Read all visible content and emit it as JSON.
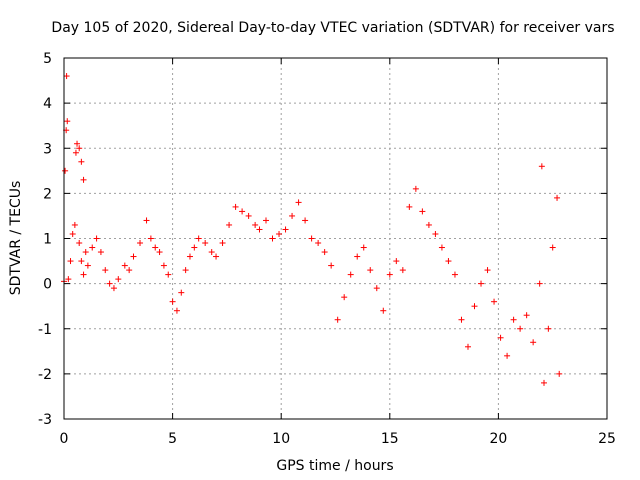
{
  "chart_data": {
    "type": "scatter",
    "title": "Day 105 of 2020, Sidereal Day-to-day VTEC variation (SDTVAR) for receiver vars",
    "xlabel": "GPS time / hours",
    "ylabel": "SDTVAR / TECUs",
    "xlim": [
      0,
      25
    ],
    "ylim": [
      -3,
      5
    ],
    "xticks": [
      0,
      5,
      10,
      15,
      20,
      25
    ],
    "yticks": [
      -3,
      -2,
      -1,
      0,
      1,
      2,
      3,
      4,
      5
    ],
    "grid": true,
    "marker": "plus",
    "marker_color": "#ff0000",
    "series": [
      {
        "name": "SDTVAR",
        "points": [
          [
            0.0,
            0.05
          ],
          [
            0.05,
            2.5
          ],
          [
            0.1,
            3.4
          ],
          [
            0.12,
            4.6
          ],
          [
            0.15,
            3.6
          ],
          [
            0.2,
            0.1
          ],
          [
            0.3,
            0.5
          ],
          [
            0.4,
            1.1
          ],
          [
            0.5,
            1.3
          ],
          [
            0.55,
            2.9
          ],
          [
            0.6,
            3.1
          ],
          [
            0.7,
            3.0
          ],
          [
            0.8,
            2.7
          ],
          [
            0.9,
            2.3
          ],
          [
            0.7,
            0.9
          ],
          [
            0.8,
            0.5
          ],
          [
            0.9,
            0.2
          ],
          [
            1.0,
            0.7
          ],
          [
            1.1,
            0.4
          ],
          [
            1.3,
            0.8
          ],
          [
            1.5,
            1.0
          ],
          [
            1.7,
            0.7
          ],
          [
            1.9,
            0.3
          ],
          [
            2.1,
            0.0
          ],
          [
            2.3,
            -0.1
          ],
          [
            2.5,
            0.1
          ],
          [
            2.8,
            0.4
          ],
          [
            3.0,
            0.3
          ],
          [
            3.2,
            0.6
          ],
          [
            3.5,
            0.9
          ],
          [
            3.8,
            1.4
          ],
          [
            4.0,
            1.0
          ],
          [
            4.2,
            0.8
          ],
          [
            4.4,
            0.7
          ],
          [
            4.6,
            0.4
          ],
          [
            4.8,
            0.2
          ],
          [
            5.0,
            -0.4
          ],
          [
            5.2,
            -0.6
          ],
          [
            5.4,
            -0.2
          ],
          [
            5.6,
            0.3
          ],
          [
            5.8,
            0.6
          ],
          [
            6.0,
            0.8
          ],
          [
            6.2,
            1.0
          ],
          [
            6.5,
            0.9
          ],
          [
            6.8,
            0.7
          ],
          [
            7.0,
            0.6
          ],
          [
            7.3,
            0.9
          ],
          [
            7.6,
            1.3
          ],
          [
            7.9,
            1.7
          ],
          [
            8.2,
            1.6
          ],
          [
            8.5,
            1.5
          ],
          [
            8.8,
            1.3
          ],
          [
            9.0,
            1.2
          ],
          [
            9.3,
            1.4
          ],
          [
            9.6,
            1.0
          ],
          [
            9.9,
            1.1
          ],
          [
            10.2,
            1.2
          ],
          [
            10.5,
            1.5
          ],
          [
            10.8,
            1.8
          ],
          [
            11.1,
            1.4
          ],
          [
            11.4,
            1.0
          ],
          [
            11.7,
            0.9
          ],
          [
            12.0,
            0.7
          ],
          [
            12.3,
            0.4
          ],
          [
            12.6,
            -0.8
          ],
          [
            12.9,
            -0.3
          ],
          [
            13.2,
            0.2
          ],
          [
            13.5,
            0.6
          ],
          [
            13.8,
            0.8
          ],
          [
            14.1,
            0.3
          ],
          [
            14.4,
            -0.1
          ],
          [
            14.7,
            -0.6
          ],
          [
            15.0,
            0.2
          ],
          [
            15.3,
            0.5
          ],
          [
            15.6,
            0.3
          ],
          [
            15.9,
            1.7
          ],
          [
            16.2,
            2.1
          ],
          [
            16.5,
            1.6
          ],
          [
            16.8,
            1.3
          ],
          [
            17.1,
            1.1
          ],
          [
            17.4,
            0.8
          ],
          [
            17.7,
            0.5
          ],
          [
            18.0,
            0.2
          ],
          [
            18.3,
            -0.8
          ],
          [
            18.6,
            -1.4
          ],
          [
            18.9,
            -0.5
          ],
          [
            19.2,
            0.0
          ],
          [
            19.5,
            0.3
          ],
          [
            19.8,
            -0.4
          ],
          [
            20.1,
            -1.2
          ],
          [
            20.4,
            -1.6
          ],
          [
            20.7,
            -0.8
          ],
          [
            21.0,
            -1.0
          ],
          [
            21.3,
            -0.7
          ],
          [
            21.6,
            -1.3
          ],
          [
            21.9,
            0.0
          ],
          [
            22.0,
            2.6
          ],
          [
            22.1,
            -2.2
          ],
          [
            22.3,
            -1.0
          ],
          [
            22.5,
            0.8
          ],
          [
            22.7,
            1.9
          ],
          [
            22.8,
            -2.0
          ]
        ]
      }
    ]
  }
}
